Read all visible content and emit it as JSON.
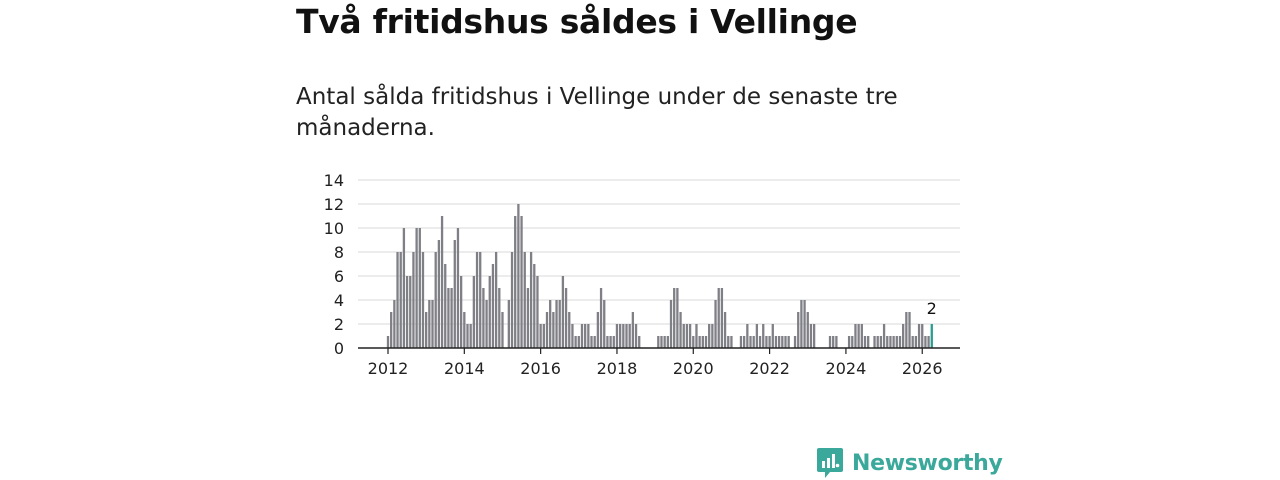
{
  "header": {
    "title": "Två fritidshus såldes i Vellinge",
    "subtitle": "Antal sålda fritidshus i Vellinge under de senaste tre månaderna."
  },
  "brand": {
    "name": "Newsworthy",
    "color": "#3aa89a",
    "icon": "newsworthy-logo-icon"
  },
  "chart_data": {
    "type": "bar",
    "x_start": "2012-01",
    "x_frequency": "month",
    "x_ticks": [
      "2012",
      "2014",
      "2016",
      "2018",
      "2020",
      "2022",
      "2024",
      "2026"
    ],
    "y_ticks": [
      0,
      2,
      4,
      6,
      8,
      10,
      12,
      14
    ],
    "ylim": [
      0,
      14
    ],
    "bar_color": "#7f7f86",
    "highlight_color": "#2a9d8f",
    "highlight_label": "2",
    "grid": true,
    "values": [
      1,
      3,
      4,
      8,
      8,
      10,
      6,
      6,
      8,
      10,
      10,
      8,
      3,
      4,
      4,
      8,
      9,
      11,
      7,
      5,
      5,
      9,
      10,
      6,
      3,
      2,
      2,
      6,
      8,
      8,
      5,
      4,
      6,
      7,
      8,
      5,
      3,
      0,
      4,
      8,
      11,
      12,
      11,
      8,
      5,
      8,
      7,
      6,
      2,
      2,
      3,
      4,
      3,
      4,
      4,
      6,
      5,
      3,
      2,
      1,
      1,
      2,
      2,
      2,
      1,
      1,
      3,
      5,
      4,
      1,
      1,
      1,
      2,
      2,
      2,
      2,
      2,
      3,
      2,
      1,
      0,
      0,
      0,
      0,
      0,
      1,
      1,
      1,
      1,
      4,
      5,
      5,
      3,
      2,
      2,
      2,
      1,
      2,
      1,
      1,
      1,
      2,
      2,
      4,
      5,
      5,
      3,
      1,
      1,
      0,
      0,
      1,
      1,
      2,
      1,
      1,
      2,
      1,
      2,
      1,
      1,
      2,
      1,
      1,
      1,
      1,
      1,
      0,
      1,
      3,
      4,
      4,
      3,
      2,
      2,
      0,
      0,
      0,
      0,
      1,
      1,
      1,
      0,
      0,
      0,
      1,
      1,
      2,
      2,
      2,
      1,
      1,
      0,
      1,
      1,
      1,
      2,
      1,
      1,
      1,
      1,
      1,
      2,
      3,
      3,
      1,
      1,
      2,
      2,
      1,
      1,
      2
    ]
  }
}
